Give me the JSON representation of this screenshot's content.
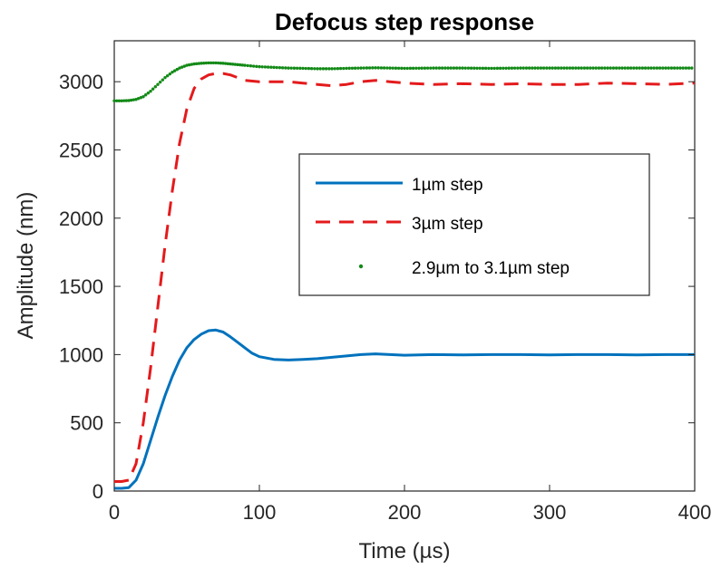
{
  "chart_data": {
    "type": "line",
    "title": "Defocus step response",
    "xlabel": "Time (µs)",
    "ylabel": "Amplitude (nm)",
    "xlim": [
      0,
      400
    ],
    "ylim": [
      0,
      3300
    ],
    "xticks": [
      0,
      100,
      200,
      300,
      400
    ],
    "yticks": [
      0,
      500,
      1000,
      1500,
      2000,
      2500,
      3000
    ],
    "grid": false,
    "legend_position": "center-right",
    "series": [
      {
        "name": "1µm step",
        "color": "#0072bd",
        "style": "solid",
        "x": [
          0,
          5,
          10,
          15,
          20,
          25,
          30,
          35,
          40,
          45,
          50,
          55,
          60,
          65,
          70,
          75,
          80,
          85,
          90,
          95,
          100,
          110,
          120,
          130,
          140,
          150,
          160,
          170,
          180,
          190,
          200,
          220,
          240,
          260,
          280,
          300,
          320,
          340,
          360,
          380,
          400
        ],
        "y": [
          20,
          20,
          25,
          80,
          200,
          370,
          540,
          700,
          840,
          960,
          1050,
          1110,
          1150,
          1175,
          1180,
          1165,
          1130,
          1090,
          1050,
          1010,
          985,
          965,
          960,
          965,
          970,
          980,
          990,
          1000,
          1005,
          1000,
          995,
          1000,
          998,
          1000,
          1000,
          998,
          1000,
          1000,
          998,
          1000,
          1000
        ]
      },
      {
        "name": "3µm step",
        "color": "#e41a1c",
        "style": "dashed",
        "x": [
          0,
          5,
          10,
          15,
          20,
          25,
          30,
          35,
          40,
          45,
          50,
          55,
          60,
          65,
          70,
          75,
          80,
          85,
          90,
          100,
          110,
          120,
          130,
          140,
          150,
          160,
          170,
          180,
          190,
          200,
          220,
          240,
          260,
          280,
          300,
          320,
          340,
          360,
          380,
          400
        ],
        "y": [
          70,
          70,
          80,
          200,
          500,
          900,
          1350,
          1800,
          2200,
          2550,
          2800,
          2950,
          3020,
          3050,
          3060,
          3060,
          3050,
          3030,
          3010,
          3000,
          3000,
          3000,
          2990,
          2980,
          2970,
          2980,
          3000,
          3010,
          3000,
          2990,
          2980,
          2985,
          2980,
          2985,
          2980,
          2980,
          2990,
          2985,
          2980,
          2990
        ]
      },
      {
        "name": "2.9µm to 3.1µm step",
        "color": "#138a17",
        "style": "dotted",
        "x": [
          0,
          5,
          10,
          15,
          20,
          25,
          30,
          35,
          40,
          45,
          50,
          55,
          60,
          65,
          70,
          75,
          80,
          85,
          90,
          100,
          110,
          120,
          130,
          140,
          150,
          160,
          170,
          180,
          190,
          200,
          220,
          240,
          260,
          280,
          300,
          320,
          340,
          360,
          380,
          400
        ],
        "y": [
          2860,
          2860,
          2862,
          2870,
          2890,
          2930,
          2980,
          3030,
          3070,
          3100,
          3120,
          3130,
          3135,
          3138,
          3138,
          3135,
          3130,
          3125,
          3120,
          3110,
          3105,
          3100,
          3098,
          3095,
          3095,
          3098,
          3100,
          3102,
          3100,
          3098,
          3100,
          3100,
          3098,
          3100,
          3100,
          3100,
          3100,
          3100,
          3100,
          3100
        ]
      }
    ]
  }
}
